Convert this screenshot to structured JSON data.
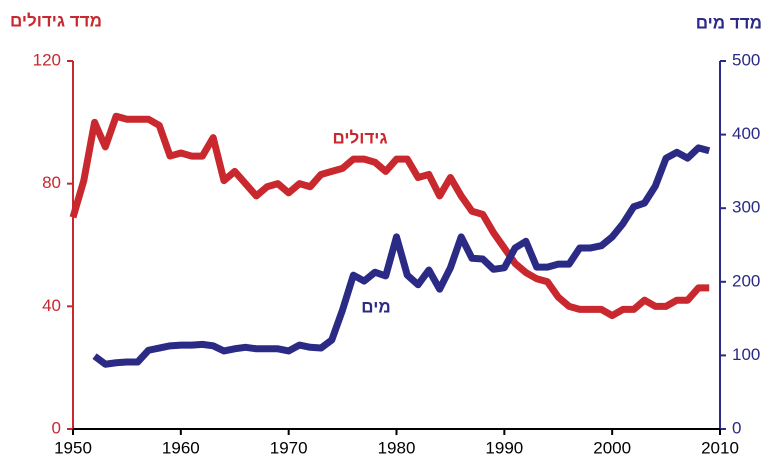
{
  "chart_data": {
    "type": "line",
    "y_label": "מדד גידולים",
    "y2_label": "מדד מים",
    "annotations": [
      "גידולים",
      "מים"
    ],
    "x": [
      1950,
      1951,
      1952,
      1953,
      1954,
      1955,
      1956,
      1957,
      1958,
      1959,
      1960,
      1961,
      1962,
      1963,
      1964,
      1965,
      1966,
      1967,
      1968,
      1969,
      1970,
      1971,
      1972,
      1973,
      1974,
      1975,
      1976,
      1977,
      1978,
      1979,
      1980,
      1981,
      1982,
      1983,
      1984,
      1985,
      1986,
      1987,
      1988,
      1989,
      1990,
      1991,
      1992,
      1993,
      1994,
      1995,
      1996,
      1997,
      1998,
      1999,
      2000,
      2001,
      2002,
      2003,
      2004,
      2005,
      2006,
      2007,
      2008,
      2009
    ],
    "series": [
      {
        "color": "#c8282e",
        "values": [
          69,
          81,
          100,
          92,
          102,
          101,
          101,
          101,
          99,
          89,
          90,
          89,
          89,
          95,
          81,
          84,
          80,
          76,
          79,
          80,
          77,
          80,
          79,
          83,
          84,
          85,
          88,
          88,
          87,
          84,
          88,
          88,
          82,
          83,
          76,
          82,
          76,
          71,
          70,
          64,
          59,
          54,
          51,
          49,
          48,
          43,
          40,
          39,
          39,
          39,
          37,
          39,
          39,
          42,
          40,
          40,
          42,
          42,
          46,
          46
        ]
      },
      {
        "color": "#2b2a84",
        "axis": "y2",
        "values": [
          null,
          null,
          99,
          88,
          90,
          91,
          91,
          107,
          110,
          113,
          114,
          114,
          115,
          113,
          106,
          109,
          111,
          109,
          109,
          109,
          106,
          114,
          111,
          110,
          121,
          162,
          209,
          201,
          213,
          208,
          261,
          209,
          196,
          216,
          190,
          219,
          261,
          232,
          231,
          217,
          219,
          246,
          255,
          220,
          220,
          224,
          224,
          246,
          246,
          249,
          261,
          279,
          302,
          307,
          330,
          368,
          376,
          368,
          382,
          378
        ]
      }
    ],
    "xlim": [
      1950,
      2010
    ],
    "xticks": [
      1950,
      1960,
      1970,
      1980,
      1990,
      2000,
      2010
    ],
    "ylim": [
      0,
      120
    ],
    "yticks": [
      0,
      40,
      80,
      120
    ],
    "y2lim": [
      0,
      500
    ],
    "y2ticks": [
      0,
      100,
      200,
      300,
      400,
      500
    ]
  }
}
